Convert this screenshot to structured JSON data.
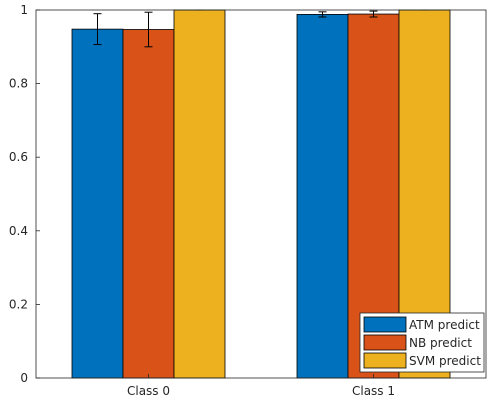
{
  "chart_data": {
    "type": "bar",
    "categories": [
      "Class 0",
      "Class 1"
    ],
    "series": [
      {
        "name": "ATM predict",
        "values": [
          0.948,
          0.988
        ],
        "errors": [
          0.042,
          0.007
        ],
        "color": "#0072BD"
      },
      {
        "name": "NB predict",
        "values": [
          0.947,
          0.989
        ],
        "errors": [
          0.047,
          0.008
        ],
        "color": "#D95319"
      },
      {
        "name": "SVM predict",
        "values": [
          1.0,
          1.0
        ],
        "errors": [
          0.0,
          0.0
        ],
        "color": "#EDB120"
      }
    ],
    "title": "",
    "xlabel": "",
    "ylabel": "",
    "ylim": [
      0,
      1
    ],
    "yticks": [
      0,
      0.2,
      0.4,
      0.6,
      0.8,
      1
    ],
    "ytick_labels": [
      "0",
      "0.2",
      "0.4",
      "0.6",
      "0.8",
      "1"
    ],
    "grid": false,
    "legend_position": "bottom-right"
  }
}
